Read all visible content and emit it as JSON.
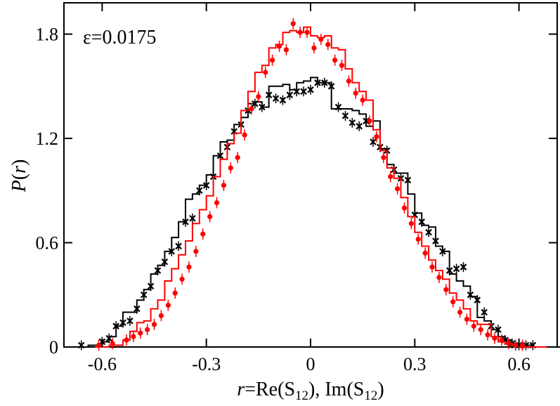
{
  "chart_data": {
    "type": "line",
    "annotation": "ε=0.0175",
    "xlabel_parts": {
      "r": "r",
      "eq": "=Re(S",
      "sub1": "12",
      "mid": "), Im(S",
      "sub2": "12",
      "end": ")"
    },
    "ylabel_parts": {
      "P": "P",
      "open": "(",
      "r": "r",
      "close": ")"
    },
    "xlim": [
      -0.71,
      0.71
    ],
    "ylim": [
      0,
      1.98
    ],
    "xticks": [
      -0.6,
      -0.3,
      0,
      0.3,
      0.6
    ],
    "xtick_labels": [
      "-0.6",
      "-0.3",
      "0",
      "0.3",
      "0.6"
    ],
    "yticks": [
      0,
      0.6,
      1.2,
      1.8
    ],
    "ytick_labels": [
      "0",
      "0.6",
      "1.2",
      "1.8"
    ],
    "grid": false,
    "colors": {
      "black": "#000000",
      "red": "#ff0000"
    },
    "series": [
      {
        "style": "step",
        "color": "#000000",
        "x": [
          -0.68,
          -0.64,
          -0.6,
          -0.58,
          -0.56,
          -0.54,
          -0.52,
          -0.5,
          -0.48,
          -0.46,
          -0.44,
          -0.42,
          -0.4,
          -0.38,
          -0.36,
          -0.34,
          -0.32,
          -0.3,
          -0.28,
          -0.26,
          -0.24,
          -0.22,
          -0.2,
          -0.18,
          -0.16,
          -0.14,
          -0.12,
          -0.1,
          -0.08,
          -0.06,
          -0.04,
          -0.02,
          0,
          0.02,
          0.04,
          0.06,
          0.08,
          0.1,
          0.12,
          0.14,
          0.16,
          0.18,
          0.2,
          0.22,
          0.24,
          0.26,
          0.28,
          0.3,
          0.32,
          0.34,
          0.36,
          0.38,
          0.4,
          0.42,
          0.44,
          0.46,
          0.48,
          0.5,
          0.52,
          0.54,
          0.56,
          0.58,
          0.6,
          0.62,
          0.64,
          0.66,
          0.68,
          0.7
        ],
        "y": [
          0,
          0.01,
          0.03,
          0.06,
          0.12,
          0.2,
          0.2,
          0.27,
          0.33,
          0.42,
          0.47,
          0.55,
          0.63,
          0.72,
          0.85,
          0.88,
          0.93,
          0.99,
          1.1,
          1.18,
          1.19,
          1.28,
          1.32,
          1.4,
          1.41,
          1.38,
          1.5,
          1.5,
          1.51,
          1.48,
          1.52,
          1.53,
          1.55,
          1.52,
          1.52,
          1.37,
          1.37,
          1.37,
          1.36,
          1.34,
          1.27,
          1.3,
          1.14,
          1.05,
          1.0,
          1.0,
          0.88,
          0.77,
          0.7,
          0.69,
          0.58,
          0.55,
          0.42,
          0.38,
          0.35,
          0.29,
          0.17,
          0.15,
          0.1,
          0.06,
          0.04,
          0.02,
          0.01,
          0.01,
          0,
          0,
          0,
          0
        ]
      },
      {
        "style": "markers-x",
        "color": "#000000",
        "x": [
          -0.66,
          -0.6,
          -0.58,
          -0.56,
          -0.54,
          -0.52,
          -0.5,
          -0.48,
          -0.46,
          -0.44,
          -0.42,
          -0.4,
          -0.38,
          -0.36,
          -0.34,
          -0.32,
          -0.3,
          -0.28,
          -0.26,
          -0.24,
          -0.22,
          -0.2,
          -0.18,
          -0.16,
          -0.14,
          -0.12,
          -0.1,
          -0.08,
          -0.06,
          -0.04,
          -0.02,
          0,
          0.02,
          0.04,
          0.06,
          0.08,
          0.1,
          0.12,
          0.14,
          0.16,
          0.18,
          0.2,
          0.22,
          0.24,
          0.26,
          0.28,
          0.3,
          0.32,
          0.34,
          0.36,
          0.38,
          0.4,
          0.42,
          0.44,
          0.46,
          0.48,
          0.5,
          0.52,
          0.54,
          0.56,
          0.58,
          0.6,
          0.62,
          0.64
        ],
        "y": [
          0.01,
          0.03,
          0.05,
          0.12,
          0.14,
          0.15,
          0.22,
          0.3,
          0.35,
          0.44,
          0.49,
          0.55,
          0.58,
          0.72,
          0.74,
          0.9,
          0.93,
          0.98,
          1.1,
          1.15,
          1.24,
          1.28,
          1.36,
          1.4,
          1.38,
          1.45,
          1.43,
          1.42,
          1.45,
          1.47,
          1.47,
          1.48,
          1.52,
          1.52,
          1.5,
          1.38,
          1.33,
          1.29,
          1.27,
          1.3,
          1.18,
          1.15,
          1.13,
          1.02,
          0.97,
          0.96,
          0.76,
          0.72,
          0.66,
          0.61,
          0.55,
          0.44,
          0.45,
          0.46,
          0.3,
          0.27,
          0.2,
          0.12,
          0.1,
          0.04,
          0.02,
          0.01,
          0.01,
          0.01
        ]
      },
      {
        "style": "step",
        "color": "#ff0000",
        "x": [
          -0.62,
          -0.58,
          -0.54,
          -0.52,
          -0.5,
          -0.48,
          -0.46,
          -0.44,
          -0.42,
          -0.4,
          -0.38,
          -0.36,
          -0.34,
          -0.32,
          -0.3,
          -0.28,
          -0.26,
          -0.24,
          -0.22,
          -0.2,
          -0.18,
          -0.16,
          -0.14,
          -0.12,
          -0.1,
          -0.08,
          -0.06,
          -0.04,
          -0.02,
          0,
          0.02,
          0.04,
          0.06,
          0.08,
          0.1,
          0.12,
          0.14,
          0.16,
          0.18,
          0.2,
          0.22,
          0.24,
          0.26,
          0.28,
          0.3,
          0.32,
          0.34,
          0.36,
          0.38,
          0.4,
          0.42,
          0.44,
          0.46,
          0.48,
          0.5,
          0.52,
          0.54,
          0.56,
          0.58,
          0.6,
          0.62,
          0.64
        ],
        "y": [
          0,
          0.01,
          0.04,
          0.09,
          0.14,
          0.15,
          0.22,
          0.27,
          0.38,
          0.45,
          0.53,
          0.61,
          0.71,
          0.79,
          0.87,
          0.98,
          1.08,
          1.17,
          1.23,
          1.36,
          1.47,
          1.58,
          1.62,
          1.72,
          1.74,
          1.81,
          1.82,
          1.81,
          1.84,
          1.79,
          1.78,
          1.79,
          1.72,
          1.71,
          1.6,
          1.52,
          1.47,
          1.42,
          1.25,
          1.13,
          1.03,
          0.97,
          0.86,
          0.75,
          0.66,
          0.58,
          0.5,
          0.44,
          0.39,
          0.31,
          0.27,
          0.22,
          0.15,
          0.13,
          0.13,
          0.06,
          0.03,
          0.02,
          0.01,
          0,
          0,
          0
        ]
      },
      {
        "style": "markers-dot",
        "color": "#ff0000",
        "x": [
          -0.61,
          -0.57,
          -0.53,
          -0.51,
          -0.49,
          -0.47,
          -0.45,
          -0.43,
          -0.41,
          -0.39,
          -0.37,
          -0.35,
          -0.33,
          -0.31,
          -0.29,
          -0.27,
          -0.25,
          -0.23,
          -0.21,
          -0.19,
          -0.17,
          -0.15,
          -0.13,
          -0.11,
          -0.09,
          -0.07,
          -0.05,
          -0.03,
          -0.01,
          0.01,
          0.03,
          0.05,
          0.07,
          0.09,
          0.11,
          0.13,
          0.15,
          0.17,
          0.19,
          0.21,
          0.23,
          0.25,
          0.27,
          0.29,
          0.31,
          0.33,
          0.35,
          0.37,
          0.39,
          0.41,
          0.43,
          0.45,
          0.47,
          0.49,
          0.51,
          0.53,
          0.55,
          0.57,
          0.59,
          0.61
        ],
        "y": [
          0.01,
          0.02,
          0.04,
          0.06,
          0.08,
          0.1,
          0.13,
          0.18,
          0.24,
          0.31,
          0.39,
          0.46,
          0.55,
          0.65,
          0.75,
          0.83,
          0.93,
          1.03,
          1.09,
          1.22,
          1.37,
          1.44,
          1.58,
          1.65,
          1.73,
          1.71,
          1.86,
          1.81,
          1.81,
          1.72,
          1.77,
          1.74,
          1.65,
          1.62,
          1.53,
          1.46,
          1.42,
          1.3,
          1.21,
          1.09,
          0.98,
          0.91,
          0.8,
          0.71,
          0.62,
          0.54,
          0.46,
          0.4,
          0.33,
          0.26,
          0.2,
          0.16,
          0.12,
          0.1,
          0.07,
          0.05,
          0.04,
          0.02,
          0.01,
          0.01
        ]
      }
    ]
  }
}
